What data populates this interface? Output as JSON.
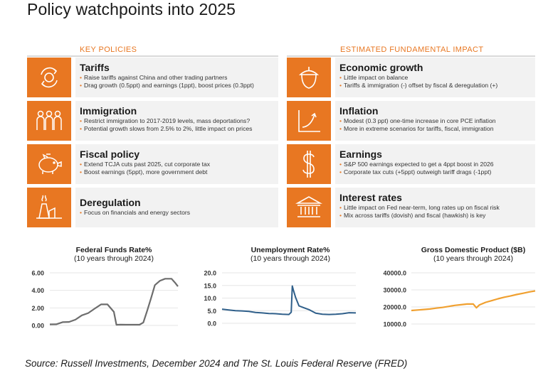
{
  "title": "Policy watchpoints into 2025",
  "headers": {
    "left": "KEY POLICIES",
    "right": "ESTIMATED FUNDAMENTAL IMPACT"
  },
  "policies": [
    {
      "title": "Tariffs",
      "icon": "cycle-arrows-icon",
      "bullets": [
        "Raise tariffs against China and other trading partners",
        "Drag growth (0.5ppt) and earnings (1ppt), boost prices (0.3ppt)"
      ]
    },
    {
      "title": "Immigration",
      "icon": "people-icon",
      "bullets": [
        "Restrict immigration to 2017-2019 levels, mass deportations?",
        "Potential growth slows from 2.5% to 2%, little impact on prices"
      ]
    },
    {
      "title": "Fiscal policy",
      "icon": "piggy-bank-icon",
      "bullets": [
        "Extend TCJA cuts past 2025, cut corporate tax",
        "Boost earnings (5ppt), more government debt"
      ]
    },
    {
      "title": "Deregulation",
      "icon": "factory-icon",
      "bullets": [
        "Focus on financials and energy sectors"
      ]
    }
  ],
  "impacts": [
    {
      "title": "Economic growth",
      "icon": "acorn-icon",
      "bullets": [
        "Little impact on balance",
        "Tariffs & immigration (-) offset by fiscal & deregulation (+)"
      ]
    },
    {
      "title": "Inflation",
      "icon": "rising-chart-icon",
      "bullets": [
        "Modest (0.3 ppt) one-time increase in core PCE inflation",
        "More in extreme scenarios for tariffs, fiscal, immigration"
      ]
    },
    {
      "title": "Earnings",
      "icon": "dollar-icon",
      "bullets": [
        "S&P 500 earnings expected to get a 4ppt boost in 2026",
        "Corporate tax cuts (+5ppt) outweigh tariff drags (-1ppt)"
      ]
    },
    {
      "title": "Interest rates",
      "icon": "bank-building-icon",
      "bullets": [
        "Little impact on Fed near-term, long rates up on fiscal risk",
        "Mix across tariffs (dovish) and fiscal (hawkish) is key"
      ]
    }
  ],
  "source": "Source: Russell Investments, December 2024 and The St. Louis Federal Reserve (FRED)",
  "colors": {
    "accent": "#e87722",
    "line_gray": "#6d6d6d",
    "line_blue": "#2f5f8a",
    "line_orange": "#f0a030"
  },
  "chart_data": [
    {
      "type": "line",
      "title": "Federal Funds Rate%",
      "subtitle": "(10 years through 2024)",
      "ylim": [
        0,
        6
      ],
      "yticks": [
        "0.00",
        "2.00",
        "4.00",
        "6.00"
      ],
      "x": [
        2015.0,
        2015.5,
        2016.0,
        2016.5,
        2017.0,
        2017.5,
        2018.0,
        2018.5,
        2019.0,
        2019.5,
        2020.0,
        2020.2,
        2020.5,
        2021.0,
        2021.5,
        2022.0,
        2022.3,
        2022.6,
        2022.9,
        2023.2,
        2023.6,
        2024.0,
        2024.5,
        2024.8,
        2025.0
      ],
      "series": [
        {
          "values": [
            0.12,
            0.13,
            0.37,
            0.4,
            0.66,
            1.15,
            1.41,
            1.91,
            2.4,
            2.4,
            1.55,
            0.07,
            0.09,
            0.08,
            0.08,
            0.08,
            0.33,
            1.68,
            3.1,
            4.6,
            5.1,
            5.33,
            5.33,
            4.83,
            4.45
          ]
        }
      ]
    },
    {
      "type": "line",
      "title": "Unemployment Rate%",
      "subtitle": "(10 years through 2024)",
      "ylim": [
        0,
        20
      ],
      "yticks": [
        "0.0",
        "5.0",
        "10.0",
        "15.0",
        "20.0"
      ],
      "x": [
        2015.0,
        2015.5,
        2016.0,
        2016.5,
        2017.0,
        2017.5,
        2018.0,
        2018.5,
        2019.0,
        2019.5,
        2020.0,
        2020.17,
        2020.25,
        2020.33,
        2020.5,
        2020.75,
        2021.0,
        2021.5,
        2022.0,
        2022.5,
        2023.0,
        2023.5,
        2024.0,
        2024.5,
        2025.0
      ],
      "series": [
        {
          "values": [
            5.6,
            5.3,
            5.0,
            4.9,
            4.7,
            4.3,
            4.1,
            3.9,
            3.8,
            3.6,
            3.5,
            4.4,
            14.8,
            13.2,
            10.2,
            6.9,
            6.4,
            5.4,
            4.0,
            3.6,
            3.5,
            3.6,
            3.8,
            4.2,
            4.1
          ]
        }
      ]
    },
    {
      "type": "line",
      "title": "Gross Domestic Product ($B)",
      "subtitle": "(10 years through 2024)",
      "ylim": [
        10000,
        40000
      ],
      "yticks": [
        "10000.0",
        "20000.0",
        "30000.0",
        "40000.0"
      ],
      "x": [
        2015.0,
        2015.5,
        2016.0,
        2016.5,
        2017.0,
        2017.5,
        2018.0,
        2018.5,
        2019.0,
        2019.5,
        2020.0,
        2020.25,
        2020.5,
        2021.0,
        2021.5,
        2022.0,
        2022.5,
        2023.0,
        2023.5,
        2024.0,
        2024.5,
        2025.0
      ],
      "series": [
        {
          "values": [
            17900,
            18200,
            18500,
            18800,
            19300,
            19700,
            20300,
            20900,
            21300,
            21700,
            21700,
            19500,
            21200,
            22700,
            23700,
            24800,
            25700,
            26400,
            27300,
            28000,
            28800,
            29400
          ]
        }
      ]
    }
  ]
}
